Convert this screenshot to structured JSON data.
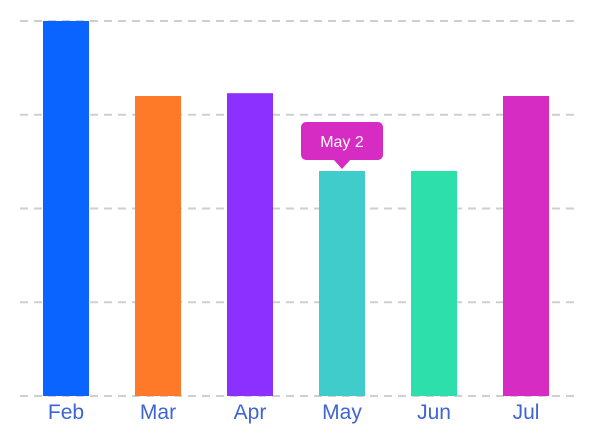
{
  "chart_data": {
    "type": "bar",
    "categories": [
      "Feb",
      "Mar",
      "Apr",
      "May",
      "Jun",
      "Jul"
    ],
    "values": [
      4,
      3.2,
      3.23,
      2.4,
      2.4,
      3.2
    ],
    "colors": [
      "#0A64FF",
      "#FF7A28",
      "#8C30FF",
      "#41CCCC",
      "#2DDFAB",
      "#D62CC3"
    ],
    "ylim": [
      0,
      4
    ],
    "grid": true,
    "grid_style": "dashed",
    "tooltip": {
      "category": "May",
      "text": "May 2",
      "color": "#D62CC3"
    },
    "axis_label_color": "#3F64D4"
  }
}
